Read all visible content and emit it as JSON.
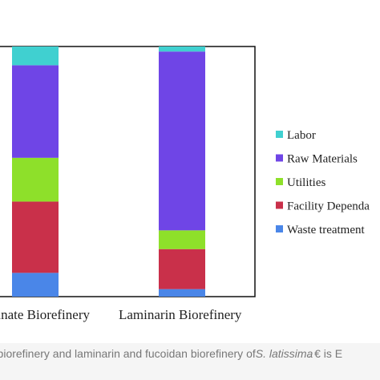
{
  "chart_data": {
    "type": "bar",
    "stacked": true,
    "categories": [
      "Alginate Biorefinery",
      "Laminarin Biorefinery"
    ],
    "category_labels_visible": [
      "inate Biorefinery",
      "Laminarin Biorefinery"
    ],
    "ylim": [
      0,
      100
    ],
    "grid": false,
    "legend_position": "right",
    "series": [
      {
        "name": "Waste treatment",
        "color": "#4a86e8",
        "values": [
          9.5,
          3
        ]
      },
      {
        "name": "Facility Dependa",
        "color": "#c9304a",
        "values": [
          28.5,
          16
        ]
      },
      {
        "name": "Utilities",
        "color": "#8ee02a",
        "values": [
          17.5,
          7.5
        ]
      },
      {
        "name": "Raw Materials",
        "color": "#6f45e6",
        "values": [
          37,
          71.5
        ]
      },
      {
        "name": "Labor",
        "color": "#40d0d0",
        "values": [
          7.5,
          2
        ]
      }
    ],
    "legend_order": [
      "Labor",
      "Raw Materials",
      "Utilities",
      "Facility Dependa",
      "Waste treatment"
    ]
  },
  "caption": {
    "text_part1": "- biorefinery and laminarin and fucoidan biorefinery of ",
    "species": "S. latissima",
    "text_part2": ". € is E"
  }
}
